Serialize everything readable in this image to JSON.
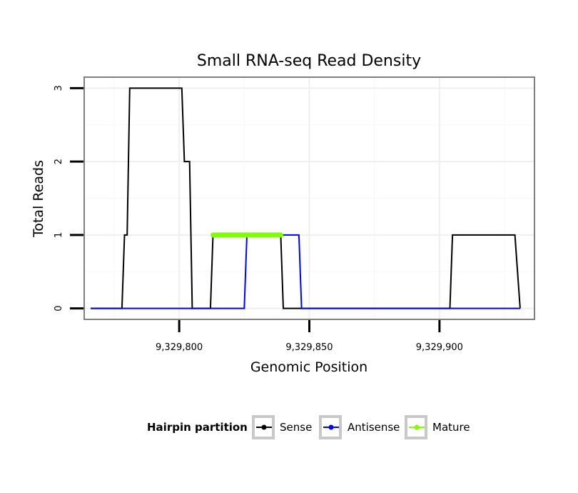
{
  "chart_data": {
    "type": "line",
    "title": "Small RNA-seq Read Density",
    "xlabel": "Genomic Position",
    "ylabel": "Total Reads",
    "xlim": [
      9329763.5,
      9329936.5
    ],
    "ylim": [
      -0.15,
      3.15
    ],
    "x_ticks": [
      9329800,
      9329850,
      9329900
    ],
    "x_tick_labels": [
      "9,329,800",
      "9,329,850",
      "9,329,900"
    ],
    "y_ticks": [
      0,
      1,
      2,
      3
    ],
    "y_tick_labels": [
      "0",
      "1",
      "2",
      "3"
    ],
    "grid": true,
    "legend": {
      "title": "Hairpin partition",
      "position": "bottom",
      "entries": [
        "Sense",
        "Antisense",
        "Mature"
      ]
    },
    "series": [
      {
        "name": "Sense",
        "color": "#000000",
        "x": [
          9329766,
          9329778,
          9329779,
          9329780,
          9329781,
          9329801,
          9329802,
          9329804,
          9329805,
          9329812,
          9329813,
          9329839,
          9329840,
          9329904,
          9329905,
          9329929,
          9329931
        ],
        "y": [
          0,
          0,
          1,
          1,
          3,
          3,
          2,
          2,
          0,
          0,
          1,
          1,
          0,
          0,
          1,
          1,
          0
        ]
      },
      {
        "name": "Antisense",
        "color": "#0000ff",
        "x": [
          9329766,
          9329825,
          9329826,
          9329846,
          9329847,
          9329904,
          9329905,
          9329929,
          9329931
        ],
        "y": [
          0,
          0,
          1,
          1,
          0,
          0,
          0,
          0,
          0
        ]
      },
      {
        "name": "Mature",
        "color": "#7fff00",
        "x": [
          9329813,
          9329839
        ],
        "y": [
          1,
          1
        ]
      }
    ]
  }
}
